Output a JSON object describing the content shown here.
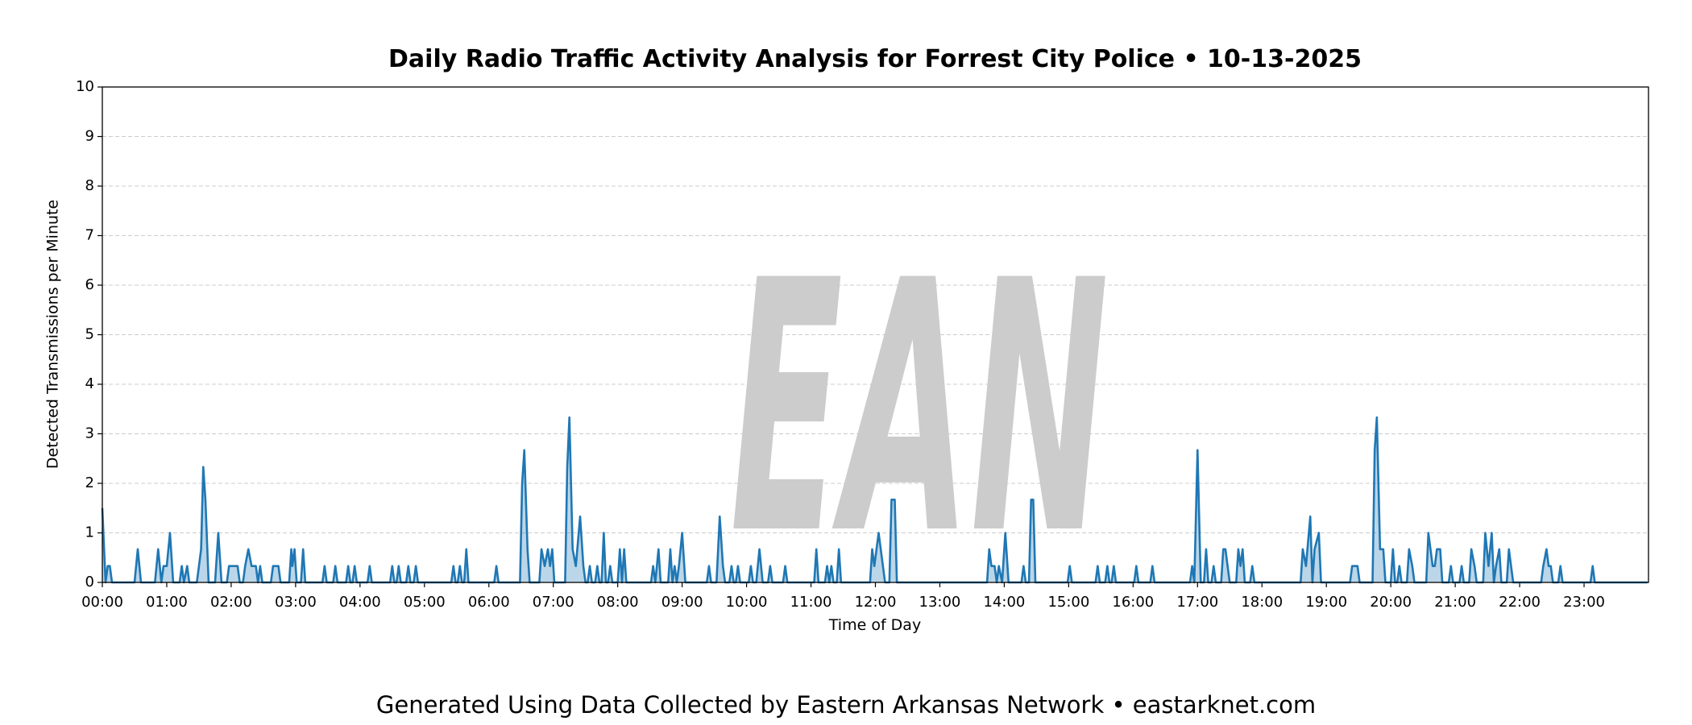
{
  "chart_data": {
    "type": "area",
    "title": "Daily Radio Traffic Activity Analysis for Forrest City Police • 10-13-2025",
    "x_label": "Time of Day",
    "y_label": "Detected Transmissions per Minute",
    "footer": "Generated Using Data Collected by Eastern Arkansas Network • eastarknet.com",
    "watermark": "EAN",
    "color": "#1f77b4",
    "grid": true,
    "xlim": [
      0,
      1440
    ],
    "ylim": [
      0,
      10
    ],
    "yticks": [
      0,
      1,
      2,
      3,
      4,
      5,
      6,
      7,
      8,
      9,
      10
    ],
    "xticks": [
      {
        "value": 0,
        "label": "00:00"
      },
      {
        "value": 60,
        "label": "01:00"
      },
      {
        "value": 120,
        "label": "02:00"
      },
      {
        "value": 180,
        "label": "03:00"
      },
      {
        "value": 240,
        "label": "04:00"
      },
      {
        "value": 300,
        "label": "05:00"
      },
      {
        "value": 360,
        "label": "06:00"
      },
      {
        "value": 420,
        "label": "07:00"
      },
      {
        "value": 480,
        "label": "08:00"
      },
      {
        "value": 540,
        "label": "09:00"
      },
      {
        "value": 600,
        "label": "10:00"
      },
      {
        "value": 660,
        "label": "11:00"
      },
      {
        "value": 720,
        "label": "12:00"
      },
      {
        "value": 780,
        "label": "13:00"
      },
      {
        "value": 840,
        "label": "14:00"
      },
      {
        "value": 900,
        "label": "15:00"
      },
      {
        "value": 960,
        "label": "16:00"
      },
      {
        "value": 1020,
        "label": "17:00"
      },
      {
        "value": 1080,
        "label": "18:00"
      },
      {
        "value": 1140,
        "label": "19:00"
      },
      {
        "value": 1200,
        "label": "20:00"
      },
      {
        "value": 1260,
        "label": "21:00"
      },
      {
        "value": 1320,
        "label": "22:00"
      },
      {
        "value": 1380,
        "label": "23:00"
      }
    ],
    "x": [
      0,
      3,
      5,
      7,
      9,
      30,
      33,
      36,
      49,
      52,
      55,
      57,
      60,
      63,
      66,
      72,
      74,
      76,
      79,
      81,
      88,
      90,
      92,
      94,
      96,
      99,
      105,
      108,
      111,
      116,
      118,
      121,
      123,
      126,
      128,
      131,
      133,
      136,
      139,
      143,
      145,
      147,
      149,
      157,
      159,
      164,
      166,
      174,
      176,
      177,
      179,
      181,
      185,
      187,
      189,
      205,
      207,
      209,
      215,
      217,
      219,
      227,
      229,
      231,
      233,
      235,
      237,
      247,
      249,
      251,
      268,
      270,
      272,
      274,
      276,
      278,
      283,
      285,
      287,
      290,
      292,
      294,
      325,
      327,
      329,
      331,
      333,
      335,
      337,
      339,
      341,
      365,
      367,
      369,
      389,
      391,
      393,
      396,
      398,
      407,
      409,
      412,
      415,
      417,
      419,
      421,
      431,
      433,
      435,
      438,
      441,
      445,
      448,
      450,
      452,
      454,
      456,
      459,
      461,
      463,
      465,
      467,
      469,
      471,
      473,
      475,
      480,
      482,
      484,
      486,
      488,
      511,
      513,
      515,
      518,
      520,
      527,
      529,
      531,
      533,
      535,
      537,
      540,
      543,
      563,
      565,
      567,
      572,
      575,
      578,
      580,
      584,
      586,
      588,
      590,
      592,
      594,
      602,
      604,
      606,
      609,
      612,
      615,
      620,
      622,
      624,
      634,
      636,
      638,
      663,
      665,
      667,
      673,
      675,
      677,
      679,
      681,
      684,
      686,
      688,
      715,
      717,
      719,
      723,
      727,
      729,
      733,
      735,
      738,
      740,
      824,
      826,
      828,
      831,
      833,
      835,
      838,
      841,
      844,
      856,
      858,
      860,
      863,
      865,
      867,
      869,
      899,
      901,
      903,
      925,
      927,
      929,
      934,
      936,
      938,
      940,
      942,
      944,
      961,
      963,
      965,
      976,
      978,
      980,
      1013,
      1015,
      1017,
      1020,
      1023,
      1026,
      1028,
      1030,
      1033,
      1035,
      1037,
      1042,
      1044,
      1046,
      1048,
      1050,
      1056,
      1058,
      1060,
      1062,
      1064,
      1069,
      1071,
      1073,
      1116,
      1118,
      1121,
      1125,
      1127,
      1129,
      1133,
      1135,
      1162,
      1164,
      1166,
      1169,
      1171,
      1183,
      1185,
      1187,
      1190,
      1193,
      1195,
      1200,
      1202,
      1204,
      1206,
      1208,
      1210,
      1215,
      1217,
      1220,
      1222,
      1233,
      1235,
      1239,
      1241,
      1243,
      1246,
      1248,
      1254,
      1256,
      1258,
      1264,
      1266,
      1268,
      1273,
      1275,
      1278,
      1280,
      1286,
      1288,
      1291,
      1294,
      1296,
      1298,
      1301,
      1303,
      1308,
      1310,
      1312,
      1314,
      1340,
      1342,
      1345,
      1347,
      1349,
      1351,
      1356,
      1358,
      1360,
      1386,
      1388,
      1390,
      1439
    ],
    "values": [
      1.5,
      0,
      0.33,
      0.33,
      0,
      0,
      0.67,
      0,
      0,
      0.67,
      0,
      0.33,
      0.33,
      1,
      0,
      0,
      0.33,
      0,
      0.33,
      0,
      0,
      0.33,
      0.67,
      2.33,
      1.67,
      0,
      0,
      1,
      0,
      0,
      0.33,
      0.33,
      0.33,
      0.33,
      0,
      0,
      0.33,
      0.67,
      0.33,
      0.33,
      0,
      0.33,
      0,
      0,
      0.33,
      0.33,
      0,
      0,
      0.67,
      0.33,
      0.67,
      0,
      0,
      0.67,
      0,
      0,
      0.33,
      0,
      0,
      0.33,
      0,
      0,
      0.33,
      0,
      0,
      0.33,
      0,
      0,
      0.33,
      0,
      0,
      0.33,
      0,
      0,
      0.33,
      0,
      0,
      0.33,
      0,
      0,
      0.33,
      0,
      0,
      0.33,
      0,
      0,
      0.33,
      0,
      0,
      0.67,
      0,
      0,
      0.33,
      0,
      0,
      2,
      2.67,
      0.67,
      0,
      0,
      0.67,
      0.33,
      0.67,
      0.33,
      0.67,
      0,
      0,
      2.33,
      3.33,
      0.67,
      0.33,
      1.33,
      0.33,
      0,
      0,
      0.33,
      0,
      0,
      0.33,
      0,
      0,
      1,
      0,
      0,
      0.33,
      0,
      0,
      0.67,
      0,
      0.67,
      0,
      0,
      0.33,
      0,
      0.67,
      0,
      0,
      0.67,
      0,
      0.33,
      0,
      0.33,
      1,
      0,
      0,
      0.33,
      0,
      0,
      1.33,
      0.33,
      0,
      0,
      0.33,
      0,
      0,
      0.33,
      0,
      0,
      0.33,
      0,
      0,
      0.67,
      0,
      0,
      0.33,
      0,
      0,
      0.33,
      0,
      0,
      0.67,
      0,
      0,
      0.33,
      0,
      0.33,
      0,
      0,
      0.67,
      0,
      0,
      0.67,
      0.33,
      1,
      0.33,
      0,
      0,
      1.67,
      1.67,
      0,
      0,
      0.67,
      0.33,
      0.33,
      0,
      0.33,
      0,
      1,
      0,
      0,
      0.33,
      0,
      0,
      1.67,
      1.67,
      0,
      0,
      0.33,
      0,
      0,
      0.33,
      0,
      0,
      0.33,
      0,
      0,
      0.33,
      0,
      0,
      0.33,
      0,
      0,
      0.33,
      0,
      0,
      0.33,
      0,
      2.67,
      0,
      0,
      0.67,
      0,
      0,
      0.33,
      0,
      0,
      0.67,
      0.67,
      0.33,
      0,
      0,
      0.67,
      0.33,
      0.67,
      0,
      0,
      0.33,
      0,
      0,
      0.67,
      0.33,
      1.33,
      0,
      0.67,
      1,
      0,
      0,
      0.33,
      0.33,
      0.33,
      0,
      0,
      2.67,
      3.33,
      0.67,
      0.67,
      0,
      0,
      0.67,
      0,
      0,
      0.33,
      0,
      0,
      0.67,
      0.33,
      0,
      0,
      1,
      0.33,
      0.33,
      0.67,
      0.67,
      0,
      0,
      0.33,
      0,
      0,
      0.33,
      0,
      0,
      0.67,
      0.33,
      0,
      0,
      1,
      0.33,
      1,
      0,
      0.33,
      0.67,
      0,
      0,
      0.67,
      0.33,
      0,
      0,
      0.33,
      0.67,
      0.33,
      0.33,
      0,
      0,
      0.33,
      0,
      0,
      0.33,
      0,
      0
    ]
  }
}
